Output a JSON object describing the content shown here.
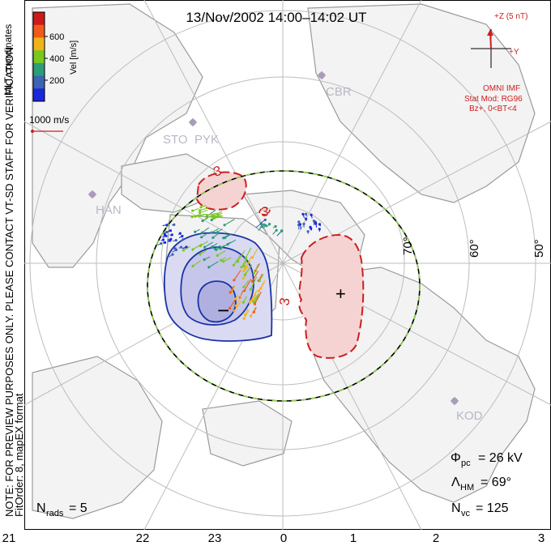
{
  "title": "13/Nov/2002  14:00–14:02  UT",
  "color_scale": {
    "unit_label": "Vel [m/s]",
    "ticks": [
      "600",
      "400",
      "200"
    ],
    "colors": [
      "#cc1a1a",
      "#f05a1a",
      "#f0b41a",
      "#78c81e",
      "#2d9c78",
      "#3c64b4",
      "#1a28dc"
    ],
    "coord_label": "MLT coordinates"
  },
  "velocity_scale": {
    "label": "1000 m/s"
  },
  "side_note": "NOTE: FOR PREVIEW PURPOSES ONLY. PLEASE CONTACT VT-SD STAFF FOR VERIFICATION.",
  "side_note_2": "FitOrder: 8, mapEX format",
  "imf": {
    "z_label": "+Z (5 nT)",
    "y_label": "+Y",
    "source": "OMNI IMF",
    "model": "Stat Mod: RG96",
    "condition": "Bz+, 0<BT<4"
  },
  "stations": [
    "CBR",
    "STO",
    "PYK",
    "HAN",
    "KOD"
  ],
  "latitude_labels": [
    "70°",
    "60°",
    "50°"
  ],
  "potential_contour_labels": [
    "3",
    "3",
    "3"
  ],
  "cell_markers": {
    "min": "−",
    "max": "+"
  },
  "stats": {
    "pcp_symbol": "Φ",
    "pcp_sub": "pc",
    "pcp_value": "=  26 kV",
    "hm_symbol": "Λ",
    "hm_sub": "HM",
    "hm_value": "=  69°",
    "nvc_symbol": "N",
    "nvc_sub": "vc",
    "nvc_value": "=  125",
    "nrads_symbol": "N",
    "nrads_sub": "rads",
    "nrads_value": "=  5"
  },
  "mlt_labels": [
    "21",
    "22",
    "23",
    "0",
    "1",
    "2",
    "3"
  ],
  "colors": {
    "positive_cell": "#f4cccc",
    "positive_line": "#cc1f1f",
    "negative_cell": "#d6d6f0",
    "negative_line": "#1a33a6",
    "land": "#f2f2f2",
    "coast": "#9a9a9a",
    "grid": "#b8b8b8",
    "station": "#a89cb8",
    "boundary_dash": "#8ed34a"
  }
}
